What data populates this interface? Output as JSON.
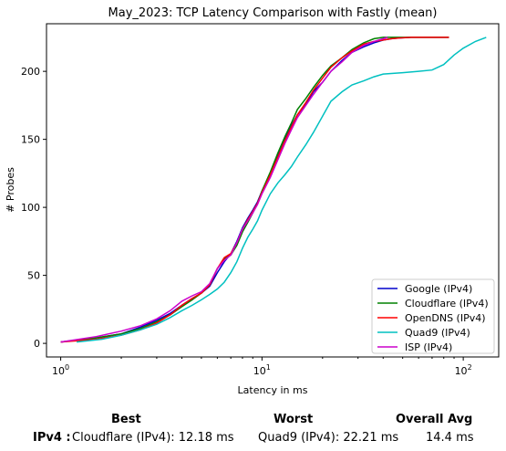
{
  "chart_data": {
    "type": "line",
    "title": "May_2023: TCP Latency Comparison with Fastly (mean)",
    "xlabel": "Latency in ms",
    "ylabel": "# Probes",
    "xscale": "log",
    "xlim": [
      0.85,
      150
    ],
    "ylim": [
      -10,
      235
    ],
    "xticks": [
      {
        "value": 1,
        "label": "10^0"
      },
      {
        "value": 10,
        "label": "10^1"
      },
      {
        "value": 100,
        "label": "10^2"
      }
    ],
    "yticks": [
      0,
      50,
      100,
      150,
      200
    ],
    "grid": false,
    "legend": "bottom-right",
    "series": [
      {
        "name": "Google (IPv4)",
        "color": "#0000cc",
        "x": [
          1.0,
          1.5,
          2.0,
          2.5,
          3.0,
          3.5,
          4.0,
          4.5,
          5.0,
          5.5,
          6.0,
          6.5,
          7.0,
          7.5,
          8.0,
          8.5,
          9.0,
          9.5,
          10.0,
          11.0,
          12.0,
          13.0,
          14.0,
          15.0,
          16.5,
          18.0,
          20.0,
          22.0,
          25.0,
          28.0,
          32.0,
          36.0,
          40.0,
          44.0,
          48.0,
          55.0,
          65.0,
          75.0,
          85.0
        ],
        "y": [
          1,
          4,
          7,
          12,
          17,
          22,
          28,
          33,
          37,
          42,
          52,
          60,
          66,
          75,
          85,
          92,
          98,
          104,
          112,
          125,
          138,
          150,
          160,
          168,
          176,
          185,
          192,
          200,
          208,
          214,
          218,
          221,
          223,
          224,
          224.5,
          225,
          225,
          225,
          225
        ]
      },
      {
        "name": "Cloudflare (IPv4)",
        "color": "#008000",
        "x": [
          1.0,
          1.5,
          2.0,
          2.5,
          3.0,
          3.5,
          4.0,
          4.5,
          5.0,
          5.5,
          6.0,
          6.5,
          7.0,
          7.5,
          8.0,
          8.5,
          9.0,
          9.5,
          10.0,
          11.0,
          12.0,
          13.0,
          14.0,
          15.0,
          16.5,
          18.0,
          20.0,
          22.0,
          25.0,
          28.0,
          32.0,
          36.0,
          40.0,
          44.0,
          48.0,
          55.0,
          65.0,
          75.0,
          85.0
        ],
        "y": [
          1,
          4,
          7,
          11,
          16,
          21,
          27,
          32,
          37,
          43,
          55,
          62,
          65,
          72,
          82,
          89,
          96,
          103,
          112,
          126,
          140,
          152,
          162,
          172,
          180,
          188,
          197,
          204,
          210,
          216,
          221,
          224,
          225,
          225,
          225,
          225,
          225,
          225,
          225
        ]
      },
      {
        "name": "OpenDNS (IPv4)",
        "color": "#ff0000",
        "x": [
          1.0,
          1.5,
          2.0,
          2.5,
          3.0,
          3.5,
          4.0,
          4.5,
          5.0,
          5.5,
          6.0,
          6.5,
          7.0,
          7.5,
          8.0,
          8.5,
          9.0,
          9.5,
          10.0,
          11.0,
          12.0,
          13.0,
          14.0,
          15.0,
          16.5,
          18.0,
          20.0,
          22.0,
          25.0,
          28.0,
          32.0,
          36.0,
          40.0,
          44.0,
          48.0,
          55.0,
          65.0,
          75.0,
          85.0
        ],
        "y": [
          1,
          3,
          6,
          10,
          15,
          21,
          28,
          33,
          37,
          43,
          55,
          63,
          66,
          74,
          84,
          91,
          97,
          103,
          111,
          124,
          137,
          149,
          159,
          168,
          177,
          186,
          195,
          203,
          210,
          215,
          220,
          222,
          223,
          224,
          224.5,
          225,
          225,
          225,
          225
        ]
      },
      {
        "name": "Quad9 (IPv4)",
        "color": "#00c0c0",
        "x": [
          1.2,
          1.6,
          2.0,
          2.5,
          3.0,
          3.5,
          4.0,
          4.5,
          5.0,
          5.5,
          6.0,
          6.5,
          7.0,
          7.5,
          8.0,
          8.5,
          9.0,
          9.5,
          10.0,
          11.0,
          12.0,
          13.0,
          14.0,
          15.0,
          16.5,
          18.0,
          20.0,
          22.0,
          25.0,
          28.0,
          32.0,
          36.0,
          40.0,
          50.0,
          60.0,
          70.0,
          80.0,
          90.0,
          100.0,
          115.0,
          130.0
        ],
        "y": [
          1,
          3,
          6,
          10,
          14,
          19,
          24,
          28,
          32,
          36,
          40,
          45,
          52,
          60,
          70,
          78,
          84,
          90,
          98,
          110,
          118,
          124,
          130,
          137,
          146,
          155,
          167,
          178,
          185,
          190,
          193,
          196,
          198,
          199,
          200,
          201,
          205,
          212,
          217,
          222,
          225
        ]
      },
      {
        "name": "ISP (IPv4)",
        "color": "#cc00cc",
        "x": [
          1.0,
          1.5,
          2.0,
          2.5,
          3.0,
          3.5,
          4.0,
          4.5,
          5.0,
          5.5,
          6.0,
          6.5,
          7.0,
          7.5,
          8.0,
          8.5,
          9.0,
          9.5,
          10.0,
          11.0,
          12.0,
          13.0,
          14.0,
          15.0,
          16.5,
          18.0,
          20.0,
          22.0,
          25.0,
          28.0,
          32.0,
          36.0,
          40.0,
          42.0
        ],
        "y": [
          1,
          5,
          9,
          13,
          18,
          24,
          31,
          35,
          38,
          44,
          55,
          61,
          65,
          74,
          84,
          90,
          96,
          102,
          110,
          122,
          135,
          147,
          157,
          166,
          175,
          183,
          192,
          200,
          207,
          214,
          219,
          222,
          224,
          225
        ]
      }
    ]
  },
  "summary": {
    "best_header": "Best",
    "worst_header": "Worst",
    "avg_header": "Overall Avg",
    "row_label": "IPv4 :",
    "best_value": "Cloudflare (IPv4): 12.18 ms",
    "worst_value": "Quad9 (IPv4): 22.21 ms",
    "avg_value": "14.4 ms"
  }
}
